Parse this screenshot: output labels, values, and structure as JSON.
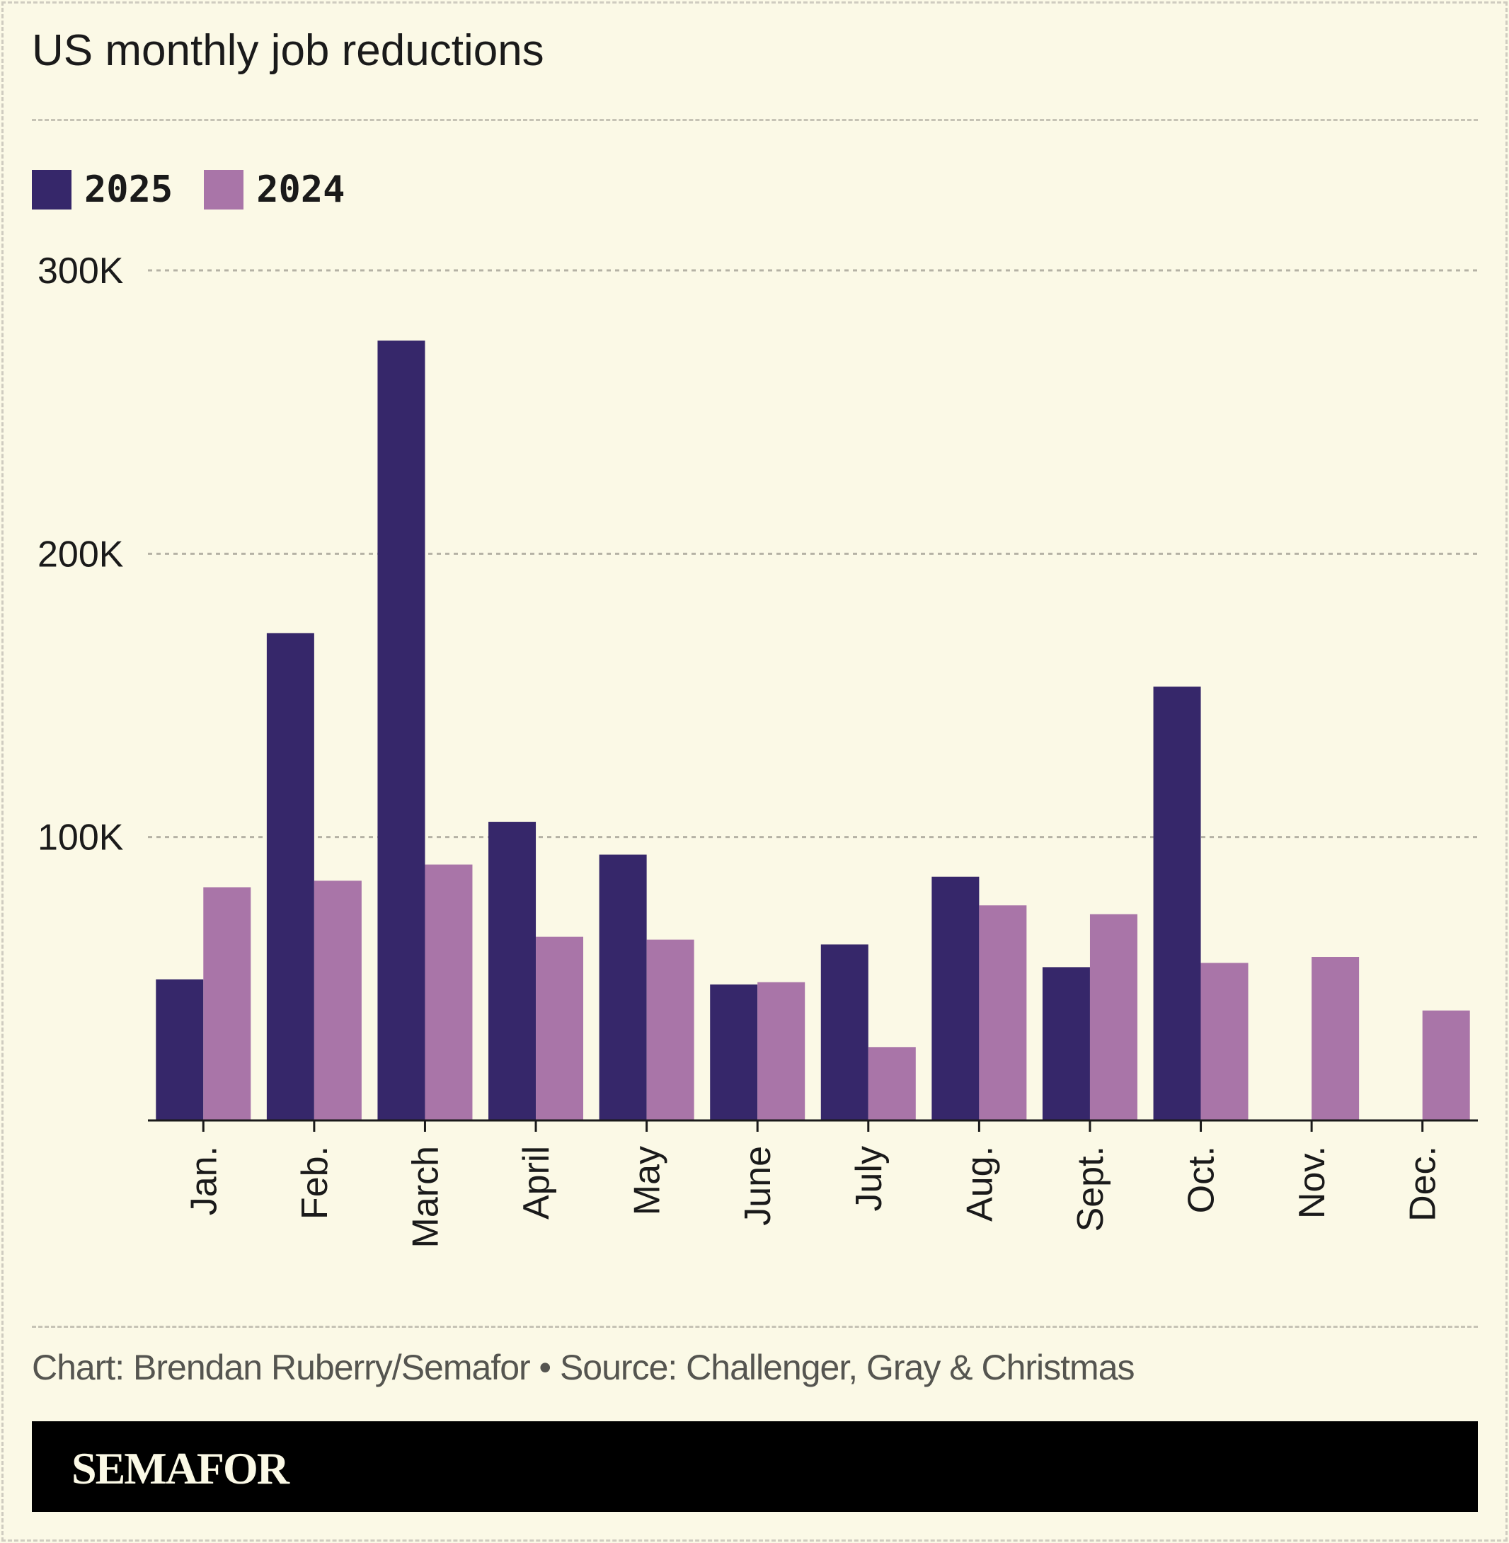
{
  "chart_data": {
    "type": "bar",
    "title": "US monthly job reductions",
    "categories": [
      "Jan.",
      "Feb.",
      "March",
      "April",
      "May",
      "June",
      "July",
      "Aug.",
      "Sept.",
      "Oct.",
      "Nov.",
      "Dec."
    ],
    "series": [
      {
        "name": "2025",
        "color": "#36276a",
        "values": [
          49.8,
          172.0,
          275.2,
          105.4,
          93.8,
          48.0,
          62.1,
          86.0,
          54.1,
          153.1,
          null,
          null
        ]
      },
      {
        "name": "2024",
        "color": "#a975a8",
        "values": [
          82.3,
          84.6,
          90.3,
          64.8,
          63.8,
          48.8,
          25.9,
          75.9,
          72.8,
          55.6,
          57.7,
          38.8
        ]
      }
    ],
    "value_unit": "thousands",
    "ylim": [
      0,
      300
    ],
    "yticks": [
      100,
      200,
      300
    ],
    "ytick_labels": [
      "100K",
      "200K",
      "300K"
    ],
    "grid": true,
    "legend_position": "top-left",
    "xlabel": "",
    "ylabel": ""
  },
  "footer": {
    "source": "Chart: Brendan Ruberry/Semafor • Source: Challenger, Gray & Christmas",
    "brand": "SEMAFOR"
  }
}
